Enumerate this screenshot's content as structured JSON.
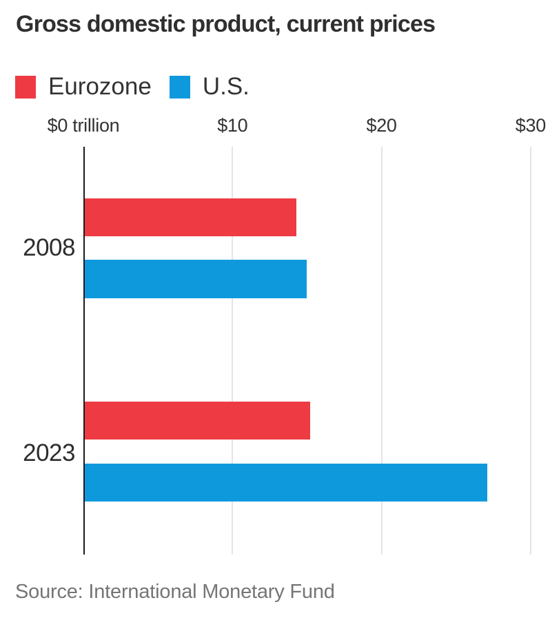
{
  "title": "Gross domestic product, current prices",
  "legend": {
    "items": [
      {
        "label": "Eurozone",
        "color": "#ee3b43"
      },
      {
        "label": "U.S.",
        "color": "#0f99dd"
      }
    ]
  },
  "source": "Source: International Monetary Fund",
  "colors": {
    "eurozone_red": "#ee3b43",
    "us_blue": "#0f99dd",
    "axis": "#1a1a1a",
    "gridline": "#e4e4e4",
    "title_text": "#2f2f2f",
    "source_text": "#757575"
  },
  "chart_data": {
    "type": "bar",
    "orientation": "horizontal",
    "title": "Gross domestic product, current prices",
    "unit": "trillion USD",
    "categories": [
      "2008",
      "2023"
    ],
    "series": [
      {
        "name": "Eurozone",
        "color": "#ee3b43",
        "values": [
          14.2,
          15.1
        ]
      },
      {
        "name": "U.S.",
        "color": "#0f99dd",
        "values": [
          14.9,
          27.0
        ]
      }
    ],
    "x_ticks": [
      {
        "value": 0,
        "label": "$0 trillion"
      },
      {
        "value": 10,
        "label": "$10"
      },
      {
        "value": 20,
        "label": "$20"
      },
      {
        "value": 30,
        "label": "$30"
      }
    ],
    "xlim": [
      0,
      31.3
    ],
    "grid": true,
    "legend_position": "top",
    "source": "Source: International Monetary Fund"
  }
}
